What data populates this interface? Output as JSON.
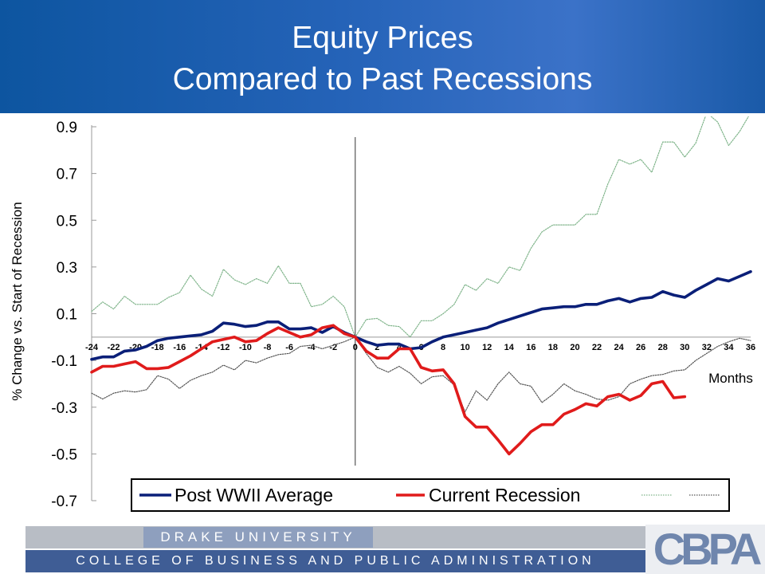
{
  "slide": {
    "title_line1": "Equity Prices",
    "title_line2": "Compared to Past Recessions"
  },
  "footer": {
    "university": "DRAKE UNIVERSITY",
    "college": "COLLEGE OF BUSINESS AND PUBLIC ADMINISTRATION",
    "logo_text": "CBPA"
  },
  "colors": {
    "title_bar": "#2563b8",
    "post_wwii": "#0a1f78",
    "current": "#e01b1b",
    "upper": "#7fb48a",
    "lower": "#555555"
  },
  "chart_data": {
    "type": "line",
    "title": "",
    "xlabel": "Months",
    "ylabel": "% Change vs. Start of Recession",
    "xlim": [
      -24,
      36
    ],
    "ylim": [
      -0.7,
      0.9
    ],
    "x_ticks": [
      -24,
      -22,
      -20,
      -18,
      -16,
      -14,
      -12,
      -10,
      -8,
      -6,
      -4,
      -2,
      0,
      2,
      4,
      6,
      8,
      10,
      12,
      14,
      16,
      18,
      20,
      22,
      24,
      26,
      28,
      30,
      32,
      34,
      36
    ],
    "x_tick_labels": [
      "-24",
      "-22",
      "-20",
      "-18",
      "-16",
      "-14",
      "-12",
      "-10",
      "-8",
      "-6",
      "-4",
      "-2",
      "0",
      "2",
      "4",
      "6",
      "8",
      "10",
      "12",
      "14",
      "16",
      "18",
      "20",
      "22",
      "24",
      "26",
      "28",
      "30",
      "32",
      "34",
      "36"
    ],
    "y_ticks": [
      -0.7,
      -0.5,
      -0.3,
      -0.1,
      0.1,
      0.3,
      0.5,
      0.7,
      0.9
    ],
    "y_tick_labels": [
      "-0.7",
      "-0.5",
      "-0.3",
      "-0.1",
      "0.1",
      "0.3",
      "0.5",
      "0.7",
      "0.9"
    ],
    "legend_position": "bottom",
    "series": [
      {
        "name": "Post WWII Average",
        "style": "solid-thick",
        "color": "#0a1f78",
        "x": [
          -24,
          -23,
          -22,
          -21,
          -20,
          -19,
          -18,
          -17,
          -16,
          -15,
          -14,
          -13,
          -12,
          -11,
          -10,
          -9,
          -8,
          -7,
          -6,
          -5,
          -4,
          -3,
          -2,
          -1,
          0,
          1,
          2,
          3,
          4,
          5,
          6,
          7,
          8,
          9,
          10,
          11,
          12,
          13,
          14,
          15,
          16,
          17,
          18,
          19,
          20,
          21,
          22,
          23,
          24,
          25,
          26,
          27,
          28,
          29,
          30,
          31,
          32,
          33,
          34,
          35,
          36
        ],
        "y": [
          -0.095,
          -0.085,
          -0.085,
          -0.06,
          -0.055,
          -0.04,
          -0.015,
          -0.005,
          0,
          0.005,
          0.01,
          0.025,
          0.06,
          0.055,
          0.045,
          0.05,
          0.065,
          0.065,
          0.035,
          0.035,
          0.04,
          0.02,
          0.045,
          0.02,
          0,
          -0.02,
          -0.035,
          -0.03,
          -0.03,
          -0.05,
          -0.045,
          -0.02,
          0,
          0.01,
          0.02,
          0.03,
          0.04,
          0.06,
          0.075,
          0.09,
          0.105,
          0.12,
          0.125,
          0.13,
          0.13,
          0.14,
          0.14,
          0.155,
          0.165,
          0.15,
          0.165,
          0.17,
          0.195,
          0.18,
          0.17,
          0.2,
          0.225,
          0.25,
          0.24,
          0.26,
          0.28
        ]
      },
      {
        "name": "Current Recession",
        "style": "solid-thick",
        "color": "#e01b1b",
        "x": [
          -24,
          -23,
          -22,
          -21,
          -20,
          -19,
          -18,
          -17,
          -16,
          -15,
          -14,
          -13,
          -12,
          -11,
          -10,
          -9,
          -8,
          -7,
          -6,
          -5,
          -4,
          -3,
          -2,
          -1,
          0,
          1,
          2,
          3,
          4,
          5,
          6,
          7,
          8,
          9,
          10,
          11,
          12,
          13,
          14,
          15,
          16,
          17,
          18,
          19,
          20,
          21,
          22,
          23,
          24,
          25,
          26,
          27,
          28,
          29,
          30
        ],
        "y": [
          -0.15,
          -0.125,
          -0.125,
          -0.115,
          -0.105,
          -0.135,
          -0.135,
          -0.13,
          -0.105,
          -0.08,
          -0.05,
          -0.02,
          -0.01,
          0,
          -0.02,
          -0.015,
          0.015,
          0.04,
          0.02,
          0,
          0.01,
          0.04,
          0.05,
          0.015,
          0,
          -0.06,
          -0.09,
          -0.09,
          -0.05,
          -0.05,
          -0.13,
          -0.145,
          -0.14,
          -0.2,
          -0.34,
          -0.385,
          -0.385,
          -0.44,
          -0.5,
          -0.455,
          -0.405,
          -0.375,
          -0.375,
          -0.33,
          -0.31,
          -0.285,
          -0.295,
          -0.255,
          -0.245,
          -0.27,
          -0.25,
          -0.2,
          -0.19,
          -0.26,
          -0.255
        ]
      },
      {
        "name": "",
        "style": "dotted",
        "color": "#7fb48a",
        "x": [
          -24,
          -23,
          -22,
          -21,
          -20,
          -19,
          -18,
          -17,
          -16,
          -15,
          -14,
          -13,
          -12,
          -11,
          -10,
          -9,
          -8,
          -7,
          -6,
          -5,
          -4,
          -3,
          -2,
          -1,
          0,
          1,
          2,
          3,
          4,
          5,
          6,
          7,
          8,
          9,
          10,
          11,
          12,
          13,
          14,
          15,
          16,
          17,
          18,
          19,
          20,
          21,
          22,
          23,
          24,
          25,
          26,
          27,
          28,
          29,
          30,
          31,
          32,
          33,
          34,
          35,
          36
        ],
        "y": [
          0.11,
          0.15,
          0.12,
          0.175,
          0.14,
          0.14,
          0.14,
          0.17,
          0.19,
          0.265,
          0.205,
          0.175,
          0.29,
          0.245,
          0.225,
          0.25,
          0.23,
          0.305,
          0.23,
          0.23,
          0.13,
          0.14,
          0.175,
          0.13,
          0,
          0.075,
          0.08,
          0.05,
          0.045,
          0,
          0.07,
          0.07,
          0.1,
          0.14,
          0.225,
          0.2,
          0.25,
          0.23,
          0.3,
          0.285,
          0.38,
          0.45,
          0.48,
          0.48,
          0.48,
          0.525,
          0.525,
          0.655,
          0.76,
          0.74,
          0.76,
          0.705,
          0.835,
          0.835,
          0.77,
          0.83,
          0.96,
          0.92,
          0.82,
          0.88,
          0.96
        ]
      },
      {
        "name": "",
        "style": "dotted",
        "color": "#555555",
        "x": [
          -24,
          -23,
          -22,
          -21,
          -20,
          -19,
          -18,
          -17,
          -16,
          -15,
          -14,
          -13,
          -12,
          -11,
          -10,
          -9,
          -8,
          -7,
          -6,
          -5,
          -4,
          -3,
          -2,
          -1,
          0,
          1,
          2,
          3,
          4,
          5,
          6,
          7,
          8,
          9,
          10,
          11,
          12,
          13,
          14,
          15,
          16,
          17,
          18,
          19,
          20,
          21,
          22,
          23,
          24,
          25,
          26,
          27,
          28,
          29,
          30,
          31,
          32,
          33,
          34,
          35,
          36
        ],
        "y": [
          -0.24,
          -0.265,
          -0.24,
          -0.23,
          -0.235,
          -0.225,
          -0.165,
          -0.18,
          -0.22,
          -0.185,
          -0.165,
          -0.15,
          -0.12,
          -0.14,
          -0.1,
          -0.11,
          -0.09,
          -0.075,
          -0.07,
          -0.04,
          -0.035,
          -0.05,
          -0.035,
          -0.02,
          0,
          -0.07,
          -0.13,
          -0.15,
          -0.125,
          -0.155,
          -0.2,
          -0.17,
          -0.165,
          -0.205,
          -0.32,
          -0.23,
          -0.27,
          -0.2,
          -0.15,
          -0.2,
          -0.21,
          -0.28,
          -0.245,
          -0.2,
          -0.23,
          -0.245,
          -0.265,
          -0.27,
          -0.255,
          -0.2,
          -0.18,
          -0.165,
          -0.16,
          -0.145,
          -0.14,
          -0.1,
          -0.07,
          -0.04,
          -0.02,
          -0.005,
          -0.015
        ]
      }
    ]
  }
}
